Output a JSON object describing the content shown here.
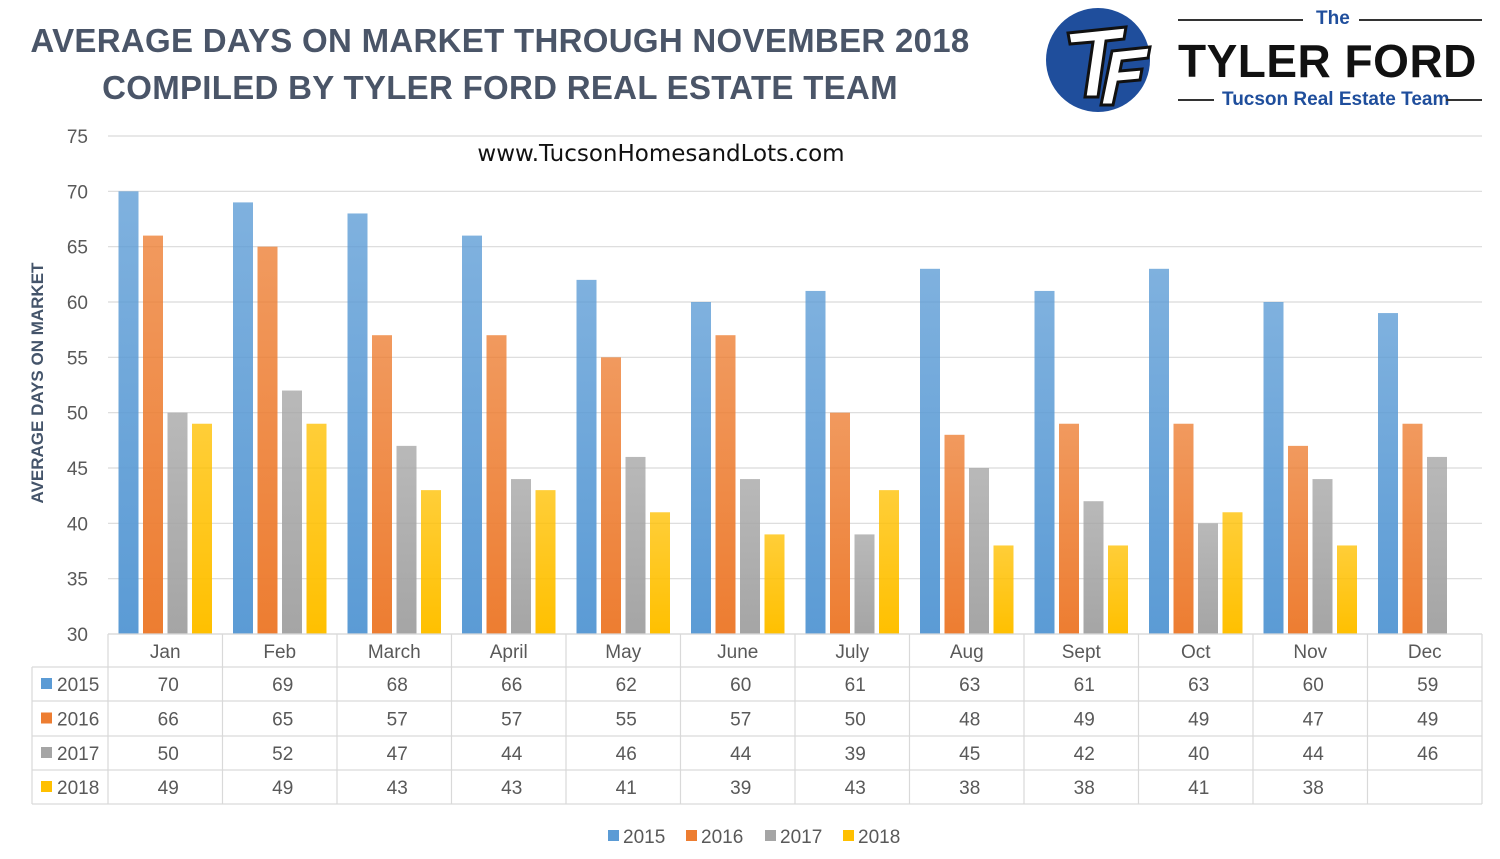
{
  "header": {
    "title_line1": "AVERAGE DAYS ON MARKET THROUGH NOVEMBER 2018",
    "title_line2": "COMPILED BY TYLER FORD REAL ESTATE TEAM"
  },
  "logo": {
    "the": "The",
    "name": "TYLER FORD",
    "subtitle": "Tucson Real Estate Team",
    "brand_color": "#1f4e9c"
  },
  "chart_data": {
    "type": "bar",
    "title": "AVERAGE DAYS ON MARKET THROUGH NOVEMBER 2018",
    "annotation": "www.TucsonHomesandLots.com",
    "ylabel": "AVERAGE DAYS ON MARKET",
    "xlabel": "",
    "ylim": [
      30,
      75
    ],
    "yticks": [
      30,
      35,
      40,
      45,
      50,
      55,
      60,
      65,
      70,
      75
    ],
    "grid": true,
    "legend": "bottom",
    "data_table": true,
    "categories": [
      "Jan",
      "Feb",
      "March",
      "April",
      "May",
      "June",
      "July",
      "Aug",
      "Sept",
      "Oct",
      "Nov",
      "Dec"
    ],
    "series": [
      {
        "name": "2015",
        "color": "#5b9bd5",
        "values": [
          70,
          69,
          68,
          66,
          62,
          60,
          61,
          63,
          61,
          63,
          60,
          59
        ]
      },
      {
        "name": "2016",
        "color": "#ed7d31",
        "values": [
          66,
          65,
          57,
          57,
          55,
          57,
          50,
          48,
          49,
          49,
          47,
          49
        ]
      },
      {
        "name": "2017",
        "color": "#a5a5a5",
        "values": [
          50,
          52,
          47,
          44,
          46,
          44,
          39,
          45,
          42,
          40,
          44,
          46
        ]
      },
      {
        "name": "2018",
        "color": "#ffc000",
        "values": [
          49,
          49,
          43,
          43,
          41,
          39,
          43,
          38,
          38,
          41,
          38,
          null
        ]
      }
    ]
  }
}
